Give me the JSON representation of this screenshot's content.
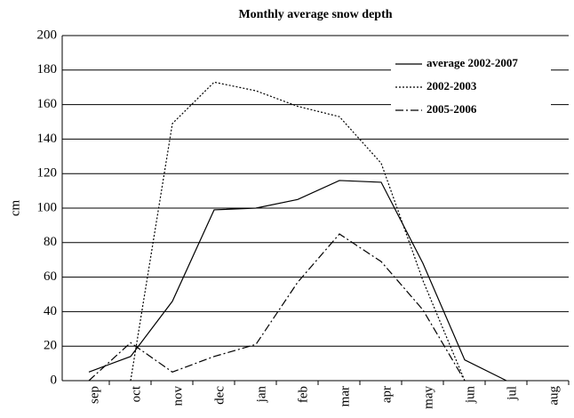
{
  "chart_data": {
    "type": "line",
    "title": "Monthly average snow depth",
    "y_label": "cm",
    "categories": [
      "sep",
      "oct",
      "nov",
      "dec",
      "jan",
      "feb",
      "mar",
      "apr",
      "may",
      "jun",
      "jul",
      "aug"
    ],
    "series": [
      {
        "name": "average 2002-2007",
        "color": "#000000",
        "dash": "solid",
        "values": [
          5,
          14,
          46,
          99,
          100,
          105,
          116,
          115,
          68,
          12,
          0,
          null
        ]
      },
      {
        "name": "2002-2003",
        "color": "#000000",
        "dash": "dotted",
        "values": [
          null,
          0,
          149,
          173,
          168,
          159,
          153,
          126,
          58,
          0,
          null,
          null
        ]
      },
      {
        "name": "2005-2006",
        "color": "#000000",
        "dash": "dashdot",
        "values": [
          0,
          22,
          5,
          14,
          21,
          57,
          85,
          69,
          41,
          0,
          null,
          null
        ]
      }
    ],
    "ylim": [
      0,
      200
    ],
    "yticks": [
      0,
      20,
      40,
      60,
      80,
      100,
      120,
      140,
      160,
      180,
      200
    ],
    "grid": true,
    "legend": "upper right"
  }
}
